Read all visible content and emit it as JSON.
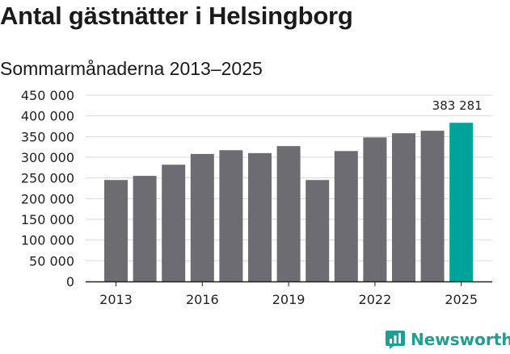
{
  "header": {
    "title": "Antal gästnätter i Helsingborg",
    "subtitle": "Sommarmånaderna 2013–2025"
  },
  "brand": {
    "name": "Newsworthy",
    "icon": "newsworthy-logo-icon"
  },
  "colors": {
    "bar": "#6d6c72",
    "highlight": "#00a39a",
    "grid": "#d9d9d9",
    "brand": "#1f9e95"
  },
  "chart_data": {
    "type": "bar",
    "title": "Antal gästnätter i Helsingborg",
    "subtitle": "Sommarmånaderna 2013–2025",
    "xlabel": "",
    "ylabel": "",
    "categories": [
      "2013",
      "2014",
      "2015",
      "2016",
      "2017",
      "2018",
      "2019",
      "2020",
      "2021",
      "2022",
      "2023",
      "2024",
      "2025"
    ],
    "values": [
      245000,
      255000,
      282000,
      308000,
      317000,
      310000,
      327000,
      245000,
      315000,
      348000,
      358000,
      364000,
      383281
    ],
    "ylim": [
      0,
      450000
    ],
    "yticks": [
      0,
      50000,
      100000,
      150000,
      200000,
      250000,
      300000,
      350000,
      400000,
      450000
    ],
    "ytick_labels": [
      "0",
      "50 000",
      "100 000",
      "150 000",
      "200 000",
      "250 000",
      "300 000",
      "350 000",
      "400 000",
      "450 000"
    ],
    "xtick_labels": [
      "2013",
      "2016",
      "2019",
      "2022",
      "2025"
    ],
    "highlight_index": 12,
    "data_labels": [
      {
        "index": 12,
        "text": "383 281"
      }
    ],
    "grid": true,
    "legend": "none"
  }
}
